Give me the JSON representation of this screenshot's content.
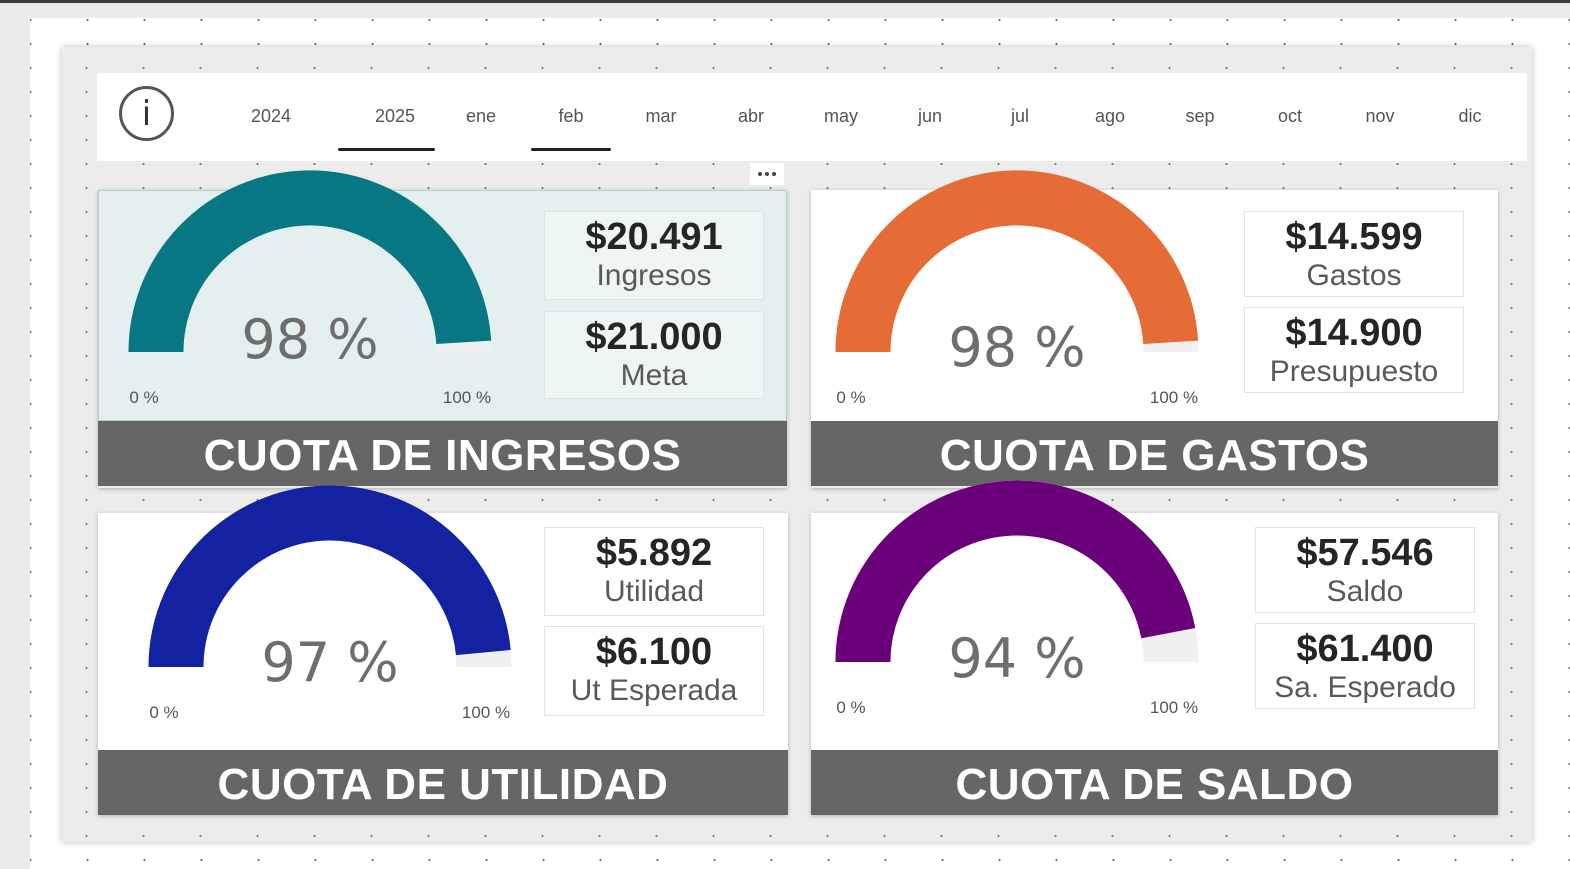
{
  "colors": {
    "ingresos": "#077784",
    "gastos": "#E56C37",
    "utilidad": "#1322A1",
    "saldo": "#6B007B",
    "gauge_track": "#F0F0F0",
    "banner": "#666666"
  },
  "slicer": {
    "info_icon": "info-icon",
    "info_glyph": "i",
    "years": [
      {
        "label": "2024",
        "selected": false
      },
      {
        "label": "2025",
        "selected": true
      }
    ],
    "months": [
      {
        "label": "ene",
        "selected": false
      },
      {
        "label": "feb",
        "selected": true
      },
      {
        "label": "mar",
        "selected": false
      },
      {
        "label": "abr",
        "selected": false
      },
      {
        "label": "may",
        "selected": false
      },
      {
        "label": "jun",
        "selected": false
      },
      {
        "label": "jul",
        "selected": false
      },
      {
        "label": "ago",
        "selected": false
      },
      {
        "label": "sep",
        "selected": false
      },
      {
        "label": "oct",
        "selected": false
      },
      {
        "label": "nov",
        "selected": false
      },
      {
        "label": "dic",
        "selected": false
      }
    ]
  },
  "cards": [
    {
      "key": "ingresos",
      "gauge": {
        "value_pct": 98,
        "label": "98 %",
        "min_label": "0 %",
        "max_label": "100 %"
      },
      "kpi_actual": {
        "value": "$20.491",
        "label": "Ingresos"
      },
      "kpi_target": {
        "value": "$21.000",
        "label": "Meta"
      },
      "title": "CUOTA DE INGRESOS"
    },
    {
      "key": "gastos",
      "gauge": {
        "value_pct": 98,
        "label": "98 %",
        "min_label": "0 %",
        "max_label": "100 %"
      },
      "kpi_actual": {
        "value": "$14.599",
        "label": "Gastos"
      },
      "kpi_target": {
        "value": "$14.900",
        "label": "Presupuesto"
      },
      "title": "CUOTA DE GASTOS"
    },
    {
      "key": "utilidad",
      "gauge": {
        "value_pct": 97,
        "label": "97 %",
        "min_label": "0 %",
        "max_label": "100 %"
      },
      "kpi_actual": {
        "value": "$5.892",
        "label": "Utilidad"
      },
      "kpi_target": {
        "value": "$6.100",
        "label": "Ut Esperada"
      },
      "title": "CUOTA DE UTILIDAD"
    },
    {
      "key": "saldo",
      "gauge": {
        "value_pct": 94,
        "label": "94 %",
        "min_label": "0 %",
        "max_label": "100 %"
      },
      "kpi_actual": {
        "value": "$57.546",
        "label": "Saldo"
      },
      "kpi_target": {
        "value": "$61.400",
        "label": "Sa. Esperado"
      },
      "title": "CUOTA DE SALDO"
    }
  ]
}
